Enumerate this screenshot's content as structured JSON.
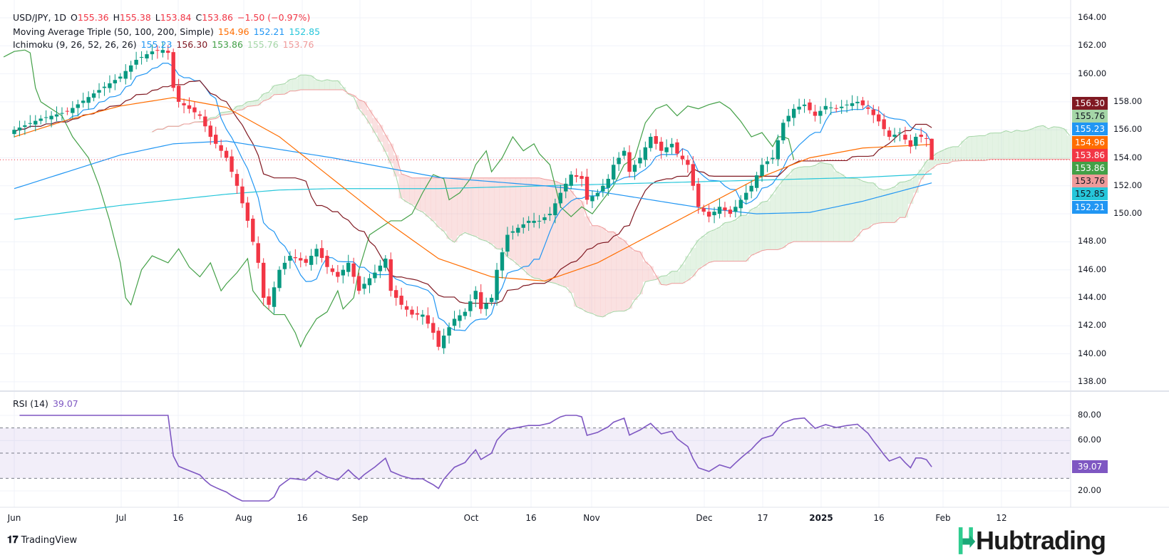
{
  "header": {
    "symbol": "USD/JPY, 1D",
    "open_label": "O",
    "open": "155.36",
    "high_label": "H",
    "high": "155.38",
    "low_label": "L",
    "low": "153.84",
    "close_label": "C",
    "close": "153.86",
    "change": "−1.50 (−0.97%)"
  },
  "ma_legend": {
    "title": "Moving Average Triple (50, 100, 200, Simple)",
    "ma50": "154.96",
    "ma100": "152.21",
    "ma200": "152.85"
  },
  "ichimoku_legend": {
    "title": "Ichimoku (9, 26, 52, 26, 26)",
    "conversion": "155.23",
    "base": "156.30",
    "lagging": "153.86",
    "lead1": "155.76",
    "lead2": "153.76"
  },
  "rsi_legend": {
    "title": "RSI (14)",
    "value": "39.07"
  },
  "price_tags": [
    {
      "value": "156.30",
      "bg": "#801922",
      "fg": "#ffffff"
    },
    {
      "value": "155.76",
      "bg": "#a5d6a7",
      "fg": "#131722"
    },
    {
      "value": "155.23",
      "bg": "#2196f3",
      "fg": "#ffffff"
    },
    {
      "value": "154.96",
      "bg": "#ff6d00",
      "fg": "#ffffff"
    },
    {
      "value": "153.86",
      "bg": "#f23645",
      "fg": "#ffffff"
    },
    {
      "value": "153.86",
      "bg": "#43a047",
      "fg": "#ffffff"
    },
    {
      "value": "153.76",
      "bg": "#ef9a9a",
      "fg": "#131722"
    },
    {
      "value": "152.85",
      "bg": "#26c6da",
      "fg": "#131722"
    },
    {
      "value": "152.21",
      "bg": "#2196f3",
      "fg": "#ffffff"
    }
  ],
  "rsi_tag": {
    "value": "39.07",
    "bg": "#7e57c2"
  },
  "price_axis": [
    "164.00",
    "162.00",
    "160.00",
    "158.00",
    "156.00",
    "154.00",
    "152.00",
    "150.00",
    "148.00",
    "146.00",
    "144.00",
    "142.00",
    "140.00",
    "138.00"
  ],
  "rsi_axis": [
    "80.00",
    "60.00",
    "20.00"
  ],
  "time_axis": [
    "Jun",
    "Jul",
    "16",
    "Aug",
    "16",
    "Sep",
    "Oct",
    "16",
    "Nov",
    "Dec",
    "17",
    "2025",
    "16",
    "Feb",
    "12"
  ],
  "branding": {
    "tradingview": "TradingView",
    "hubtrading": "Hubtrading"
  },
  "colors": {
    "up": "#089981",
    "down": "#f23645",
    "ma50": "#ff6d00",
    "ma100": "#2196f3",
    "ma200": "#26c6da",
    "tenkan": "#2196f3",
    "kijun": "#801922",
    "chikou": "#43a047",
    "cloud_up": "#a5d6a7",
    "cloud_down": "#ef9a9a",
    "rsi": "#7e57c2"
  },
  "chart_data": {
    "type": "candlestick",
    "title": "USD/JPY, 1D",
    "ylim": [
      138,
      164
    ],
    "close_keypoints": [
      [
        0,
        156.0
      ],
      [
        5,
        156.8
      ],
      [
        10,
        157.3
      ],
      [
        15,
        158.6
      ],
      [
        20,
        159.8
      ],
      [
        23,
        161.0
      ],
      [
        26,
        161.6
      ],
      [
        28,
        161.7
      ],
      [
        29,
        161.5
      ],
      [
        30,
        159.0
      ],
      [
        31,
        158.0
      ],
      [
        33,
        157.5
      ],
      [
        35,
        157.0
      ],
      [
        37,
        155.5
      ],
      [
        40,
        154.0
      ],
      [
        42,
        152.0
      ],
      [
        44,
        149.5
      ],
      [
        46,
        146.5
      ],
      [
        47,
        144.0
      ],
      [
        48,
        143.5
      ],
      [
        50,
        146.0
      ],
      [
        52,
        147.0
      ],
      [
        55,
        146.5
      ],
      [
        57,
        147.5
      ],
      [
        59,
        146.2
      ],
      [
        61,
        145.5
      ],
      [
        63,
        146.5
      ],
      [
        65,
        144.5
      ],
      [
        66,
        145.0
      ],
      [
        68,
        145.8
      ],
      [
        70,
        146.8
      ],
      [
        71,
        144.5
      ],
      [
        73,
        143.5
      ],
      [
        75,
        142.8
      ],
      [
        77,
        142.8
      ],
      [
        79,
        141.5
      ],
      [
        80,
        140.5
      ],
      [
        81,
        141.3
      ],
      [
        83,
        142.5
      ],
      [
        85,
        143.0
      ],
      [
        87,
        144.5
      ],
      [
        88,
        143.2
      ],
      [
        90,
        144.0
      ],
      [
        91,
        146.0
      ],
      [
        93,
        148.5
      ],
      [
        95,
        149.0
      ],
      [
        97,
        149.5
      ],
      [
        99,
        149.5
      ],
      [
        101,
        150.0
      ],
      [
        103,
        151.5
      ],
      [
        105,
        152.8
      ],
      [
        107,
        152.5
      ],
      [
        108,
        151.0
      ],
      [
        110,
        151.5
      ],
      [
        112,
        152.5
      ],
      [
        113,
        153.5
      ],
      [
        115,
        154.5
      ],
      [
        116,
        153.0
      ],
      [
        118,
        154.0
      ],
      [
        120,
        155.5
      ],
      [
        122,
        154.5
      ],
      [
        124,
        155.0
      ],
      [
        125,
        154.3
      ],
      [
        127,
        153.5
      ],
      [
        128,
        152.0
      ],
      [
        129,
        150.5
      ],
      [
        131,
        149.8
      ],
      [
        133,
        150.5
      ],
      [
        135,
        150.0
      ],
      [
        137,
        151.0
      ],
      [
        139,
        152.0
      ],
      [
        141,
        153.5
      ],
      [
        143,
        154.0
      ],
      [
        145,
        156.5
      ],
      [
        147,
        157.5
      ],
      [
        149,
        157.8
      ],
      [
        151,
        157.0
      ],
      [
        153,
        157.7
      ],
      [
        155,
        157.5
      ],
      [
        157,
        157.8
      ],
      [
        159,
        158.0
      ],
      [
        161,
        157.5
      ],
      [
        163,
        156.6
      ],
      [
        165,
        155.5
      ],
      [
        167,
        155.8
      ],
      [
        169,
        154.8
      ],
      [
        170,
        155.5
      ],
      [
        171,
        155.5
      ],
      [
        172,
        155.36
      ],
      [
        173,
        153.86
      ]
    ],
    "ma50": [
      [
        0,
        155.5
      ],
      [
        10,
        156.7
      ],
      [
        20,
        157.7
      ],
      [
        30,
        158.3
      ],
      [
        40,
        157.6
      ],
      [
        50,
        155.5
      ],
      [
        60,
        152.5
      ],
      [
        70,
        149.5
      ],
      [
        80,
        146.8
      ],
      [
        90,
        145.5
      ],
      [
        100,
        145.2
      ],
      [
        110,
        146.5
      ],
      [
        120,
        148.5
      ],
      [
        130,
        150.5
      ],
      [
        140,
        152.5
      ],
      [
        150,
        154.0
      ],
      [
        160,
        154.7
      ],
      [
        173,
        154.96
      ]
    ],
    "ma100": [
      [
        0,
        151.8
      ],
      [
        10,
        153.0
      ],
      [
        20,
        154.2
      ],
      [
        30,
        155.0
      ],
      [
        40,
        155.2
      ],
      [
        50,
        154.6
      ],
      [
        60,
        154.0
      ],
      [
        70,
        153.3
      ],
      [
        80,
        152.6
      ],
      [
        90,
        152.3
      ],
      [
        100,
        152.0
      ],
      [
        110,
        151.6
      ],
      [
        120,
        151.0
      ],
      [
        130,
        150.4
      ],
      [
        140,
        150.0
      ],
      [
        150,
        150.1
      ],
      [
        160,
        150.9
      ],
      [
        173,
        152.21
      ]
    ],
    "ma200": [
      [
        0,
        149.6
      ],
      [
        10,
        150.1
      ],
      [
        20,
        150.6
      ],
      [
        30,
        151.0
      ],
      [
        40,
        151.4
      ],
      [
        50,
        151.7
      ],
      [
        60,
        151.8
      ],
      [
        70,
        151.8
      ],
      [
        80,
        151.8
      ],
      [
        90,
        151.9
      ],
      [
        100,
        152.0
      ],
      [
        110,
        152.1
      ],
      [
        120,
        152.2
      ],
      [
        130,
        152.3
      ],
      [
        140,
        152.4
      ],
      [
        150,
        152.5
      ],
      [
        160,
        152.6
      ],
      [
        173,
        152.85
      ]
    ],
    "rsi_levels": [
      70,
      50,
      30
    ],
    "rsi_ylim": [
      10,
      82
    ]
  }
}
